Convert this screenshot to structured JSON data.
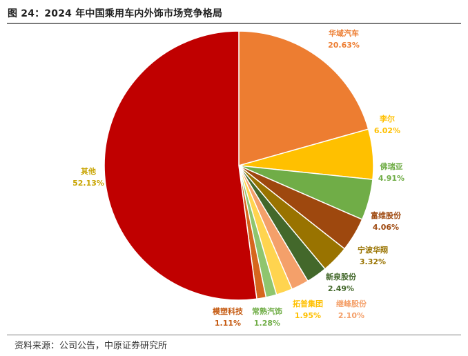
{
  "title": "图 24：2024 年中国乘用车内外饰市场竞争格局",
  "source": "资料来源：公司公告，中原证券研究所",
  "chart_data": {
    "type": "pie",
    "title": "图 24：2024 年中国乘用车内外饰市场竞争格局",
    "legend": "none",
    "start": "12 o'clock",
    "direction": "clockwise",
    "slices": [
      {
        "name": "华域汽车",
        "value": 20.63,
        "label": "20.63%",
        "color": "#ED7D31"
      },
      {
        "name": "李尔",
        "value": 6.02,
        "label": "6.02%",
        "color": "#FFC000"
      },
      {
        "name": "佛瑞亚",
        "value": 4.91,
        "label": "4.91%",
        "color": "#70AD47"
      },
      {
        "name": "富维股份",
        "value": 4.06,
        "label": "4.06%",
        "color": "#9E480E"
      },
      {
        "name": "宁波华翔",
        "value": 3.32,
        "label": "3.32%",
        "color": "#997300"
      },
      {
        "name": "新泉股份",
        "value": 2.49,
        "label": "2.49%",
        "color": "#43682B"
      },
      {
        "name": "继峰股份",
        "value": 2.1,
        "label": "2.10%",
        "color": "#F4A06A"
      },
      {
        "name": "拓普集团",
        "value": 1.95,
        "label": "1.95%",
        "color": "#FFD44F"
      },
      {
        "name": "常熟汽饰",
        "value": 1.28,
        "label": "1.28%",
        "color": "#8FC56E"
      },
      {
        "name": "模塑科技",
        "value": 1.11,
        "label": "1.11%",
        "color": "#D6661E"
      },
      {
        "name": "其他",
        "value": 52.13,
        "label": "52.13%",
        "color": "#C00000"
      }
    ],
    "label_colors": {
      "华域汽车": "#ED7D31",
      "李尔": "#FFC000",
      "佛瑞亚": "#70AD47",
      "富维股份": "#9E480E",
      "宁波华翔": "#997300",
      "新泉股份": "#43682B",
      "继峰股份": "#F4A06A",
      "拓普集团": "#FFC000",
      "常熟汽饰": "#70AD47",
      "模塑科技": "#C55A11",
      "其他": "#C8A400"
    }
  }
}
